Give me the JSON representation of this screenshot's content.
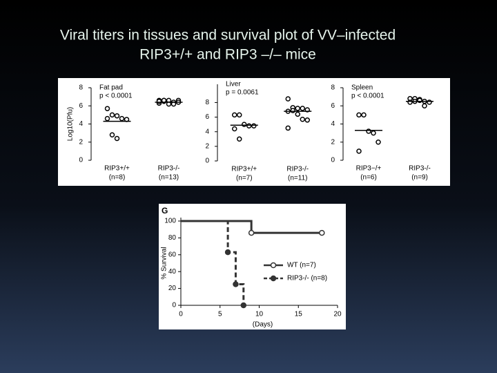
{
  "title": [
    "Viral titers in tissues and survival plot of VV–infected",
    "RIP3+/+ and RIP3 –/– mice"
  ],
  "chart_data": [
    {
      "type": "strip",
      "title": "Fat pad",
      "annotation": "p < 0.0001",
      "ylabel": "Log10(Pfu)",
      "ylim": [
        0,
        8
      ],
      "yticks": [
        0,
        2,
        4,
        6,
        8
      ],
      "categories": [
        [
          "RIP3+/+",
          "(n=8)"
        ],
        [
          "RIP3-/-",
          "(n=13)"
        ]
      ],
      "series": [
        {
          "values": [
            5.7,
            5.0,
            4.9,
            4.6,
            4.5,
            4.6,
            2.8,
            2.4
          ]
        },
        {
          "values": [
            6.6,
            6.6,
            6.5,
            6.4,
            6.6,
            6.3,
            6.5,
            6.6,
            6.2,
            6.4,
            6.5,
            6.6,
            6.2
          ]
        }
      ],
      "means": [
        4.3,
        6.4
      ]
    },
    {
      "type": "strip",
      "title": "Liver",
      "annotation": "p = 0.0061",
      "ylim": [
        0,
        10.5
      ],
      "yticks": [
        0,
        2,
        4,
        6,
        8
      ],
      "categories": [
        [
          "RIP3+/+",
          "(n=7)"
        ],
        [
          "RIP3-/-",
          "(n=11)"
        ]
      ],
      "series": [
        {
          "values": [
            6.3,
            6.3,
            5.0,
            4.8,
            4.8,
            4.4,
            3.0
          ]
        },
        {
          "values": [
            8.5,
            7.3,
            7.2,
            7.2,
            7.0,
            6.8,
            6.9,
            6.4,
            5.7,
            5.6,
            4.5
          ]
        }
      ],
      "means": [
        4.9,
        6.8
      ]
    },
    {
      "type": "strip",
      "title": "Spleen",
      "annotation": "p < 0.0001",
      "ylim": [
        0,
        8
      ],
      "yticks": [
        0,
        2,
        4,
        6,
        8
      ],
      "categories": [
        [
          "RIP3−/+",
          "(n=6)"
        ],
        [
          "RIP3-/-",
          "(n=9)"
        ]
      ],
      "series": [
        {
          "values": [
            5.0,
            5.0,
            3.2,
            3.0,
            2.0,
            1.0
          ]
        },
        {
          "values": [
            6.8,
            6.8,
            6.7,
            6.5,
            6.4,
            6.4,
            6.5,
            6.6,
            6.0
          ]
        }
      ],
      "means": [
        3.3,
        6.5
      ]
    },
    {
      "type": "step",
      "label": "G",
      "xlabel": "(Days)",
      "ylabel": "% Survival",
      "xlim": [
        0,
        20
      ],
      "ylim": [
        0,
        100
      ],
      "xticks": [
        0,
        5,
        10,
        15,
        20
      ],
      "yticks": [
        0,
        20,
        40,
        60,
        80,
        100
      ],
      "series": [
        {
          "name": "WT (n=7)",
          "color": "#333333",
          "dashed": false,
          "marker": "open",
          "x": [
            0,
            9,
            18
          ],
          "values": [
            100,
            86,
            86
          ]
        },
        {
          "name": "RIP3-/- (n=8)",
          "color": "#333333",
          "dashed": true,
          "marker": "filled",
          "x": [
            0,
            6,
            7,
            8
          ],
          "values": [
            100,
            63,
            25,
            0
          ]
        }
      ]
    }
  ]
}
